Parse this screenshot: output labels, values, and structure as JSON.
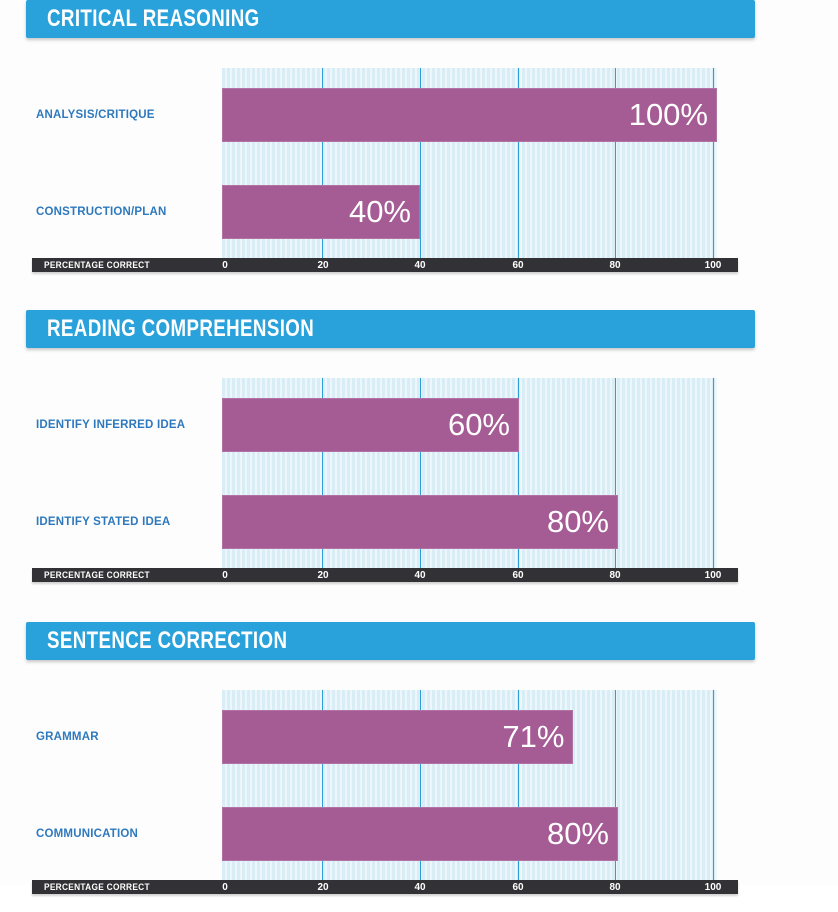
{
  "colors": {
    "header_bg": "#29a2dc",
    "bar_fill": "#a55b94",
    "category_label": "#2e79bd",
    "axis_bg": "#323236",
    "plot_bg": "#d9edf6",
    "plot_stripe": "#ecf6fb",
    "gridline": "#2e9fd6"
  },
  "axis": {
    "label": "PERCENTAGE CORRECT",
    "ticks": [
      0,
      20,
      40,
      60,
      80,
      100
    ]
  },
  "sections": [
    {
      "title": "CRITICAL REASONING",
      "bars": [
        {
          "label": "ANALYSIS/CRITIQUE",
          "value": 100,
          "display": "100%"
        },
        {
          "label": "CONSTRUCTION/PLAN",
          "value": 40,
          "display": "40%"
        }
      ]
    },
    {
      "title": "READING COMPREHENSION",
      "bars": [
        {
          "label": "IDENTIFY INFERRED IDEA",
          "value": 60,
          "display": "60%"
        },
        {
          "label": "IDENTIFY STATED IDEA",
          "value": 80,
          "display": "80%"
        }
      ]
    },
    {
      "title": "SENTENCE CORRECTION",
      "bars": [
        {
          "label": "GRAMMAR",
          "value": 71,
          "display": "71%"
        },
        {
          "label": "COMMUNICATION",
          "value": 80,
          "display": "80%"
        }
      ]
    }
  ],
  "chart_data": [
    {
      "type": "bar",
      "orientation": "horizontal",
      "title": "CRITICAL REASONING",
      "categories": [
        "ANALYSIS/CRITIQUE",
        "CONSTRUCTION/PLAN"
      ],
      "values": [
        100,
        40
      ],
      "data_labels": [
        "100%",
        "40%"
      ],
      "xlabel": "PERCENTAGE CORRECT",
      "ylabel": "",
      "xlim": [
        0,
        100
      ],
      "xticks": [
        0,
        20,
        40,
        60,
        80,
        100
      ],
      "grid": true,
      "legend": false
    },
    {
      "type": "bar",
      "orientation": "horizontal",
      "title": "READING COMPREHENSION",
      "categories": [
        "IDENTIFY INFERRED IDEA",
        "IDENTIFY STATED IDEA"
      ],
      "values": [
        60,
        80
      ],
      "data_labels": [
        "60%",
        "80%"
      ],
      "xlabel": "PERCENTAGE CORRECT",
      "ylabel": "",
      "xlim": [
        0,
        100
      ],
      "xticks": [
        0,
        20,
        40,
        60,
        80,
        100
      ],
      "grid": true,
      "legend": false
    },
    {
      "type": "bar",
      "orientation": "horizontal",
      "title": "SENTENCE CORRECTION",
      "categories": [
        "GRAMMAR",
        "COMMUNICATION"
      ],
      "values": [
        71,
        80
      ],
      "data_labels": [
        "71%",
        "80%"
      ],
      "xlabel": "PERCENTAGE CORRECT",
      "ylabel": "",
      "xlim": [
        0,
        100
      ],
      "xticks": [
        0,
        20,
        40,
        60,
        80,
        100
      ],
      "grid": true,
      "legend": false
    }
  ]
}
